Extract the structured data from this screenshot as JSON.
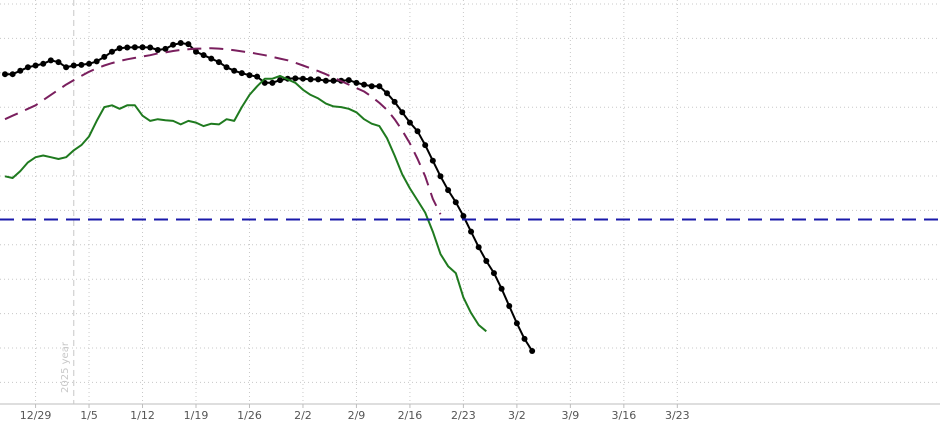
{
  "chart_data": {
    "type": "line",
    "title": "",
    "xlabel": "",
    "ylabel": "",
    "grid": true,
    "x_dates": [
      "12/25",
      "12/26",
      "12/27",
      "12/28",
      "12/29",
      "12/30",
      "12/31",
      "1/1",
      "1/2",
      "1/3",
      "1/4",
      "1/5",
      "1/6",
      "1/7",
      "1/8",
      "1/9",
      "1/10",
      "1/11",
      "1/12",
      "1/13",
      "1/14",
      "1/15",
      "1/16",
      "1/17",
      "1/18",
      "1/19",
      "1/20",
      "1/21",
      "1/22",
      "1/23",
      "1/24",
      "1/25",
      "1/26",
      "1/27",
      "1/28",
      "1/29",
      "1/30",
      "1/31",
      "2/1",
      "2/2",
      "2/3",
      "2/4",
      "2/5",
      "2/6",
      "2/7",
      "2/8",
      "2/9",
      "2/10",
      "2/11",
      "2/12",
      "2/13",
      "2/14",
      "2/15",
      "2/16",
      "2/17",
      "2/18",
      "2/19",
      "2/20",
      "2/21",
      "2/22",
      "2/23",
      "2/24",
      "2/25",
      "2/26",
      "2/27",
      "2/28",
      "3/1",
      "3/2",
      "3/3",
      "3/4",
      "3/5",
      "3/6",
      "3/7",
      "3/8",
      "3/9",
      "3/10",
      "3/11",
      "3/12",
      "3/13",
      "3/14",
      "3/15",
      "3/16",
      "3/17",
      "3/18",
      "3/19",
      "3/20",
      "3/21",
      "3/22",
      "3/23"
    ],
    "tick_labels": [
      "12/29",
      "1/5",
      "1/12",
      "1/19",
      "1/26",
      "2/2",
      "2/9",
      "2/16",
      "2/23",
      "3/2",
      "3/9",
      "3/16",
      "3/23"
    ],
    "tick_dates": [
      "12/29",
      "1/5",
      "1/12",
      "1/19",
      "1/26",
      "2/2",
      "2/9",
      "2/16",
      "2/23",
      "3/2",
      "3/9",
      "3/16",
      "3/23"
    ],
    "annotations": [
      {
        "text": "2025 year",
        "at": "1/3"
      }
    ],
    "ylim": [
      0,
      12
    ],
    "series": [
      {
        "color": "#000000",
        "style": "solid-markers",
        "start": "12/25",
        "values": [
          9.85,
          9.85,
          9.95,
          10.05,
          10.1,
          10.15,
          10.25,
          10.2,
          10.05,
          10.1,
          10.12,
          10.15,
          10.22,
          10.35,
          10.5,
          10.6,
          10.62,
          10.63,
          10.63,
          10.62,
          10.55,
          10.58,
          10.7,
          10.75,
          10.72,
          10.5,
          10.4,
          10.3,
          10.2,
          10.05,
          9.95,
          9.88,
          9.82,
          9.78,
          9.6,
          9.6,
          9.68,
          9.72,
          9.73,
          9.72,
          9.7,
          9.7,
          9.66,
          9.66,
          9.66,
          9.68,
          9.6,
          9.55,
          9.5,
          9.5,
          9.3,
          9.05,
          8.75,
          8.45,
          8.2,
          7.8,
          7.35,
          6.9,
          6.5,
          6.15,
          5.75,
          5.3,
          4.85,
          4.45,
          4.1,
          3.65,
          3.15,
          2.65,
          2.2,
          1.85
        ]
      },
      {
        "color": "#1f7a1f",
        "style": "solid",
        "start": "12/25",
        "values": [
          6.9,
          6.85,
          7.05,
          7.3,
          7.45,
          7.5,
          7.45,
          7.4,
          7.45,
          7.65,
          7.8,
          8.05,
          8.5,
          8.9,
          8.95,
          8.85,
          8.95,
          8.95,
          8.65,
          8.5,
          8.55,
          8.52,
          8.5,
          8.4,
          8.5,
          8.45,
          8.35,
          8.42,
          8.4,
          8.55,
          8.5,
          8.9,
          9.25,
          9.5,
          9.72,
          9.72,
          9.8,
          9.7,
          9.6,
          9.4,
          9.25,
          9.15,
          9.0,
          8.92,
          8.9,
          8.85,
          8.75,
          8.55,
          8.42,
          8.35,
          8.0,
          7.5,
          6.95,
          6.55,
          6.2,
          5.85,
          5.3,
          4.65,
          4.3,
          4.1,
          3.4,
          2.95,
          2.6,
          2.42
        ]
      },
      {
        "color": "#7a1f5e",
        "style": "dashed",
        "start": "12/25",
        "values": [
          8.55,
          8.65,
          8.75,
          8.85,
          8.95,
          9.1,
          9.25,
          9.4,
          9.55,
          9.68,
          9.8,
          9.92,
          10.02,
          10.1,
          10.17,
          10.23,
          10.28,
          10.32,
          10.36,
          10.4,
          10.45,
          10.48,
          10.52,
          10.55,
          10.57,
          10.59,
          10.59,
          10.6,
          10.59,
          10.57,
          10.54,
          10.51,
          10.48,
          10.44,
          10.4,
          10.35,
          10.3,
          10.25,
          10.18,
          10.1,
          10.02,
          9.94,
          9.85,
          9.75,
          9.65,
          9.55,
          9.45,
          9.35,
          9.2,
          9.02,
          8.82,
          8.55,
          8.22,
          7.85,
          7.4,
          6.9,
          6.25,
          5.8
        ]
      },
      {
        "color": "#1a1aaa",
        "style": "dashed",
        "constant": 5.65
      }
    ]
  }
}
